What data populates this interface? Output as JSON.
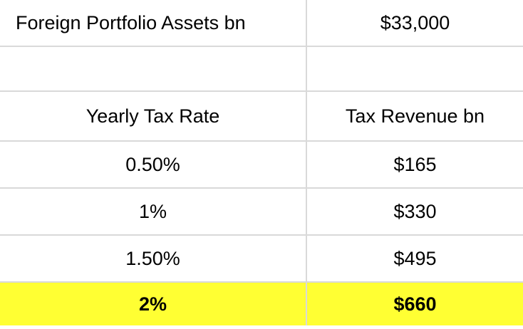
{
  "summary": {
    "label": "Foreign Portfolio Assets bn",
    "value": "$33,000"
  },
  "columns": {
    "rate": "Yearly Tax Rate",
    "revenue": "Tax Revenue bn"
  },
  "rows": [
    {
      "rate": "0.50%",
      "revenue": "$165"
    },
    {
      "rate": "1%",
      "revenue": "$330"
    },
    {
      "rate": "1.50%",
      "revenue": "$495"
    }
  ],
  "highlight_row": {
    "rate": "2%",
    "revenue": "$660"
  },
  "colors": {
    "highlight": "#ffff33",
    "gridline": "#d9d9d9"
  }
}
